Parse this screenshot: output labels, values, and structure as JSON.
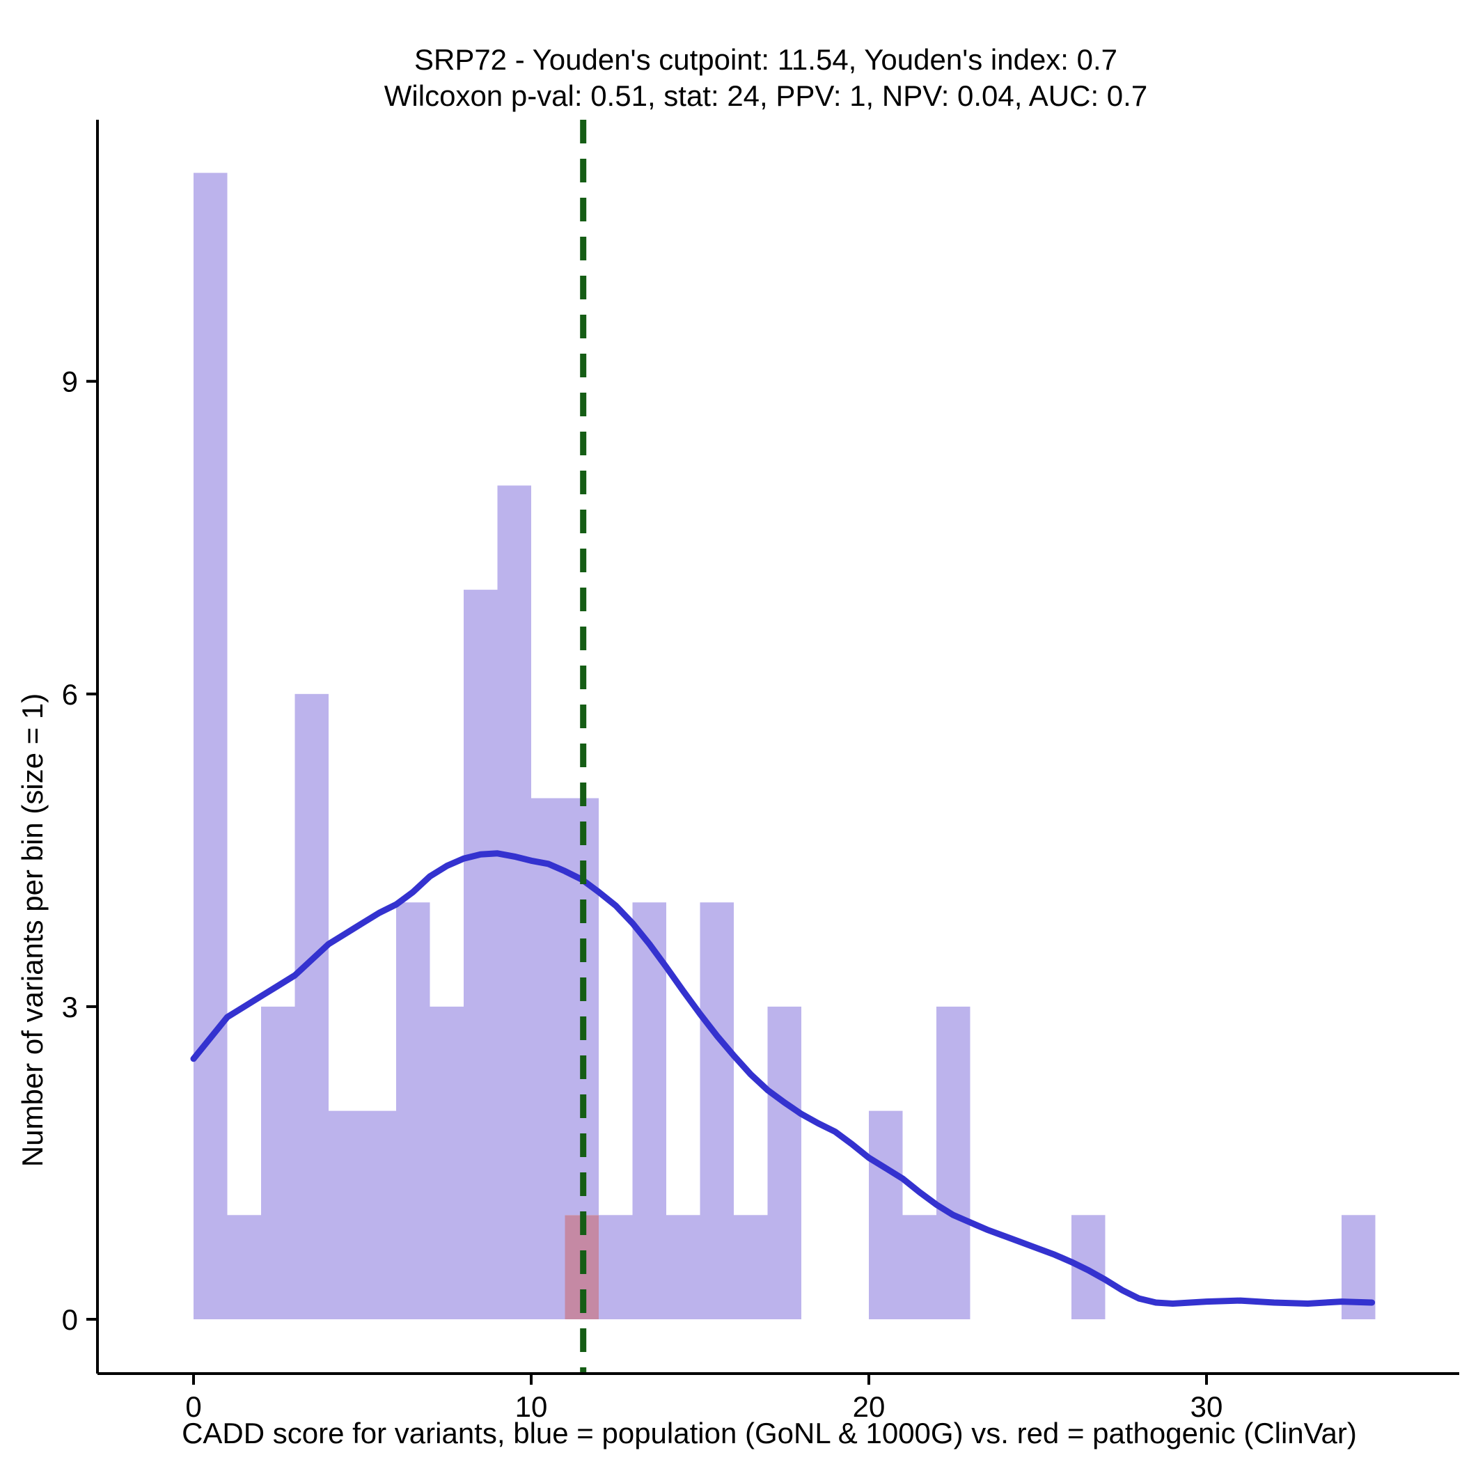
{
  "page": {
    "background": "#ffffff"
  },
  "chart_data": {
    "type": "bar",
    "subtype": "stacked_histogram_with_density_curve",
    "title": "SRP72 - Youden's cutpoint: 11.54, Youden's index: 0.7",
    "subtitle": "Wilcoxon p-val: 0.51, stat: 24, PPV: 1, NPV: 0.04, AUC: 0.7",
    "xlabel": "CADD score for variants, blue = population (GoNL & 1000G) vs. red = pathogenic (ClinVar)",
    "ylabel": "Number of variants per bin (size = 1)",
    "bin_size": 1,
    "x_ticks": [
      0,
      10,
      20,
      30
    ],
    "y_ticks": [
      0,
      3,
      6,
      9
    ],
    "xlim": [
      -2.8,
      37.3
    ],
    "ylim": [
      0,
      11.5
    ],
    "grid": false,
    "legend": "none",
    "cutpoint": 11.54,
    "categories": [
      0,
      1,
      2,
      3,
      4,
      5,
      6,
      7,
      8,
      9,
      10,
      11,
      12,
      13,
      14,
      15,
      16,
      17,
      18,
      19,
      20,
      21,
      22,
      23,
      24,
      25,
      26,
      27,
      28,
      29,
      30,
      31,
      32,
      33,
      34
    ],
    "series": [
      {
        "name": "population (GoNL & 1000G)",
        "color": "#bcb3ec",
        "values": [
          11,
          1,
          3,
          6,
          2,
          2,
          4,
          3,
          7,
          8,
          5,
          4,
          1,
          4,
          1,
          4,
          1,
          3,
          0,
          0,
          2,
          1,
          3,
          0,
          0,
          0,
          1,
          0,
          0,
          0,
          0,
          0,
          0,
          0,
          1
        ]
      },
      {
        "name": "pathogenic (ClinVar)",
        "color": "#c589a4",
        "values": [
          0,
          0,
          0,
          0,
          0,
          0,
          0,
          0,
          0,
          0,
          0,
          1,
          0,
          0,
          0,
          0,
          0,
          0,
          0,
          0,
          0,
          0,
          0,
          0,
          0,
          0,
          0,
          0,
          0,
          0,
          0,
          0,
          0,
          0,
          0
        ]
      }
    ],
    "density": [
      [
        0,
        2.5
      ],
      [
        0.5,
        2.7
      ],
      [
        1,
        2.9
      ],
      [
        1.5,
        3.0
      ],
      [
        2,
        3.1
      ],
      [
        2.5,
        3.2
      ],
      [
        3,
        3.3
      ],
      [
        3.5,
        3.45
      ],
      [
        4,
        3.6
      ],
      [
        4.5,
        3.7
      ],
      [
        5,
        3.8
      ],
      [
        5.5,
        3.9
      ],
      [
        6,
        3.98
      ],
      [
        6.5,
        4.1
      ],
      [
        7,
        4.25
      ],
      [
        7.5,
        4.35
      ],
      [
        8,
        4.42
      ],
      [
        8.5,
        4.46
      ],
      [
        9,
        4.47
      ],
      [
        9.5,
        4.44
      ],
      [
        10,
        4.4
      ],
      [
        10.5,
        4.37
      ],
      [
        11,
        4.3
      ],
      [
        11.5,
        4.22
      ],
      [
        12,
        4.1
      ],
      [
        12.5,
        3.97
      ],
      [
        13,
        3.8
      ],
      [
        13.5,
        3.6
      ],
      [
        14,
        3.38
      ],
      [
        14.5,
        3.15
      ],
      [
        15,
        2.93
      ],
      [
        15.5,
        2.72
      ],
      [
        16,
        2.53
      ],
      [
        16.5,
        2.35
      ],
      [
        17,
        2.2
      ],
      [
        17.5,
        2.08
      ],
      [
        18,
        1.97
      ],
      [
        18.5,
        1.88
      ],
      [
        19,
        1.8
      ],
      [
        19.5,
        1.68
      ],
      [
        20,
        1.55
      ],
      [
        20.5,
        1.45
      ],
      [
        21,
        1.35
      ],
      [
        21.5,
        1.22
      ],
      [
        22,
        1.1
      ],
      [
        22.5,
        1.0
      ],
      [
        23,
        0.93
      ],
      [
        23.5,
        0.86
      ],
      [
        24,
        0.8
      ],
      [
        24.5,
        0.74
      ],
      [
        25,
        0.68
      ],
      [
        25.5,
        0.62
      ],
      [
        26,
        0.55
      ],
      [
        26.5,
        0.47
      ],
      [
        27,
        0.38
      ],
      [
        27.5,
        0.28
      ],
      [
        28,
        0.2
      ],
      [
        28.5,
        0.16
      ],
      [
        29,
        0.15
      ],
      [
        30,
        0.17
      ],
      [
        31,
        0.18
      ],
      [
        32,
        0.16
      ],
      [
        33,
        0.15
      ],
      [
        34,
        0.17
      ],
      [
        34.9,
        0.16
      ]
    ],
    "colors": {
      "population": "#bcb3ec",
      "pathogenic": "#c589a4",
      "density_line": "#3432cf",
      "cutpoint_line": "#155d15",
      "axis": "#000000",
      "text": "#000000"
    }
  }
}
